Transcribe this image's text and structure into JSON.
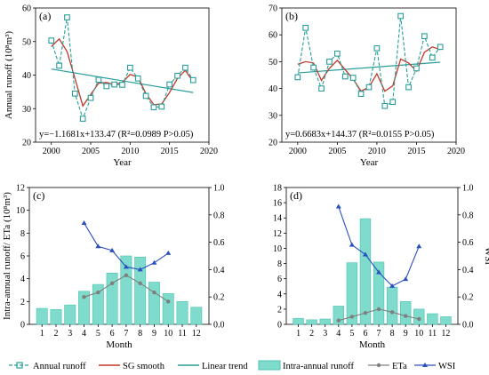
{
  "colors": {
    "annual": "#2a9d9a",
    "smooth": "#c0392b",
    "trend": "#2a9d9a",
    "bar": "#7fdccd",
    "bar_edge": "#4cc2b0",
    "eta": "#7f7f7f",
    "wsi": "#2b4fbf"
  },
  "legend": {
    "annual": "Annual runoff",
    "smooth": "SG smooth",
    "trend": "Linear trend",
    "intra": "Intra-annual runoff",
    "eta": "ETa",
    "wsi": "WSI"
  },
  "chart_data": [
    {
      "id": "a",
      "type": "line",
      "panel_label": "(a)",
      "xlabel": "Year",
      "ylabel": "Annual runoff (10⁸m³)",
      "xlim": [
        1998,
        2020
      ],
      "ylim": [
        20,
        60
      ],
      "xticks": [
        2000,
        2005,
        2010,
        2015,
        2020
      ],
      "yticks": [
        20,
        30,
        40,
        50,
        60
      ],
      "equation": "y=−1.1681x+133.47  (R²=0.0989  P>0.05)",
      "annual": {
        "x": [
          2000,
          2001,
          2002,
          2003,
          2004,
          2005,
          2006,
          2007,
          2008,
          2009,
          2010,
          2011,
          2012,
          2013,
          2014,
          2015,
          2016,
          2017,
          2018
        ],
        "y": [
          50.3,
          42.8,
          57.2,
          34.5,
          27.0,
          33.2,
          38.6,
          36.7,
          37.2,
          37.1,
          42.2,
          39.0,
          33.8,
          30.4,
          30.6,
          37.2,
          39.8,
          42.2,
          38.5
        ]
      },
      "smooth": {
        "x": [
          2000,
          2001,
          2002,
          2003,
          2004,
          2005,
          2006,
          2007,
          2008,
          2009,
          2010,
          2011,
          2012,
          2013,
          2014,
          2015,
          2016,
          2017,
          2018
        ],
        "y": [
          48.5,
          50.8,
          47.0,
          39.0,
          30.8,
          34.2,
          37.6,
          37.8,
          37.2,
          37.8,
          40.2,
          39.4,
          34.5,
          31.2,
          31.4,
          34.8,
          39.0,
          41.4,
          38.0
        ]
      },
      "trend": {
        "x": [
          2000,
          2018
        ],
        "y": [
          41.8,
          34.8
        ]
      }
    },
    {
      "id": "b",
      "type": "line",
      "panel_label": "(b)",
      "xlabel": "Year",
      "ylabel": "",
      "xlim": [
        1998,
        2020
      ],
      "ylim": [
        20,
        70
      ],
      "xticks": [
        2000,
        2005,
        2010,
        2015,
        2020
      ],
      "yticks": [
        20,
        30,
        40,
        50,
        60,
        70
      ],
      "equation": "y=0.6683x+144.37  (R²=0.0155  P>0.05)",
      "annual": {
        "x": [
          2000,
          2001,
          2002,
          2003,
          2004,
          2005,
          2006,
          2007,
          2008,
          2009,
          2010,
          2011,
          2012,
          2013,
          2014,
          2015,
          2016,
          2017,
          2018
        ],
        "y": [
          44.2,
          62.6,
          47.8,
          40.0,
          50.0,
          53.0,
          44.5,
          44.0,
          38.0,
          40.5,
          55.0,
          33.5,
          35.0,
          67.0,
          40.5,
          47.5,
          59.5,
          51.5,
          55.5
        ]
      },
      "smooth": {
        "x": [
          2000,
          2001,
          2002,
          2003,
          2004,
          2005,
          2006,
          2007,
          2008,
          2009,
          2010,
          2011,
          2012,
          2013,
          2014,
          2015,
          2016,
          2017,
          2018
        ],
        "y": [
          49.0,
          50.0,
          49.5,
          43.0,
          47.5,
          50.5,
          47.0,
          43.5,
          39.0,
          40.5,
          45.5,
          39.0,
          41.0,
          51.0,
          49.5,
          46.5,
          53.5,
          55.5,
          54.5
        ]
      },
      "trend": {
        "x": [
          2000,
          2018
        ],
        "y": [
          45.8,
          49.8
        ]
      }
    },
    {
      "id": "c",
      "type": "bar",
      "panel_label": "(c)",
      "xlabel": "Month",
      "ylabel": "Intra-annual runoff/ ETa (10⁸m³)",
      "y2label": "",
      "categories": [
        "1",
        "2",
        "3",
        "4",
        "5",
        "6",
        "7",
        "8",
        "9",
        "10",
        "11",
        "12"
      ],
      "ylim": [
        0,
        12
      ],
      "yticks": [
        0,
        2,
        4,
        6,
        8,
        10,
        12
      ],
      "y2lim": [
        0,
        1.0
      ],
      "y2ticks": [
        "0.0",
        "0.2",
        "0.4",
        "0.6",
        "0.8",
        "1.0"
      ],
      "intra": [
        1.4,
        1.3,
        1.7,
        2.9,
        3.5,
        4.5,
        6.0,
        5.9,
        3.7,
        2.7,
        2.0,
        1.5
      ],
      "eta": {
        "months": [
          4,
          5,
          6,
          7,
          8,
          9,
          10
        ],
        "values": [
          2.4,
          2.8,
          3.6,
          4.3,
          3.6,
          2.8,
          2.0
        ]
      },
      "wsi": {
        "months": [
          4,
          5,
          6,
          7,
          8,
          9,
          10
        ],
        "values": [
          0.74,
          0.57,
          0.54,
          0.42,
          0.4,
          0.45,
          0.52
        ]
      }
    },
    {
      "id": "d",
      "type": "bar",
      "panel_label": "(d)",
      "xlabel": "Month",
      "ylabel": "",
      "y2label": "WSI",
      "categories": [
        "1",
        "2",
        "3",
        "4",
        "5",
        "6",
        "7",
        "8",
        "9",
        "10",
        "11",
        "12"
      ],
      "ylim": [
        0,
        18
      ],
      "yticks": [
        0,
        2,
        4,
        6,
        8,
        10,
        12,
        14,
        16,
        18
      ],
      "y2lim": [
        0,
        1.0
      ],
      "y2ticks": [
        "0.0",
        "0.2",
        "0.4",
        "0.6",
        "0.8",
        "1.0"
      ],
      "intra": [
        0.8,
        0.6,
        0.7,
        2.4,
        8.1,
        13.9,
        8.2,
        4.9,
        3.0,
        2.0,
        1.4,
        1.0
      ],
      "eta": {
        "months": [
          4,
          5,
          6,
          7,
          8,
          9,
          10
        ],
        "values": [
          0.5,
          1.0,
          1.5,
          2.0,
          1.6,
          1.1,
          0.7
        ]
      },
      "wsi": {
        "months": [
          4,
          5,
          6,
          7,
          8,
          9,
          10
        ],
        "values": [
          0.86,
          0.58,
          0.51,
          0.38,
          0.28,
          0.33,
          0.57
        ]
      }
    }
  ]
}
